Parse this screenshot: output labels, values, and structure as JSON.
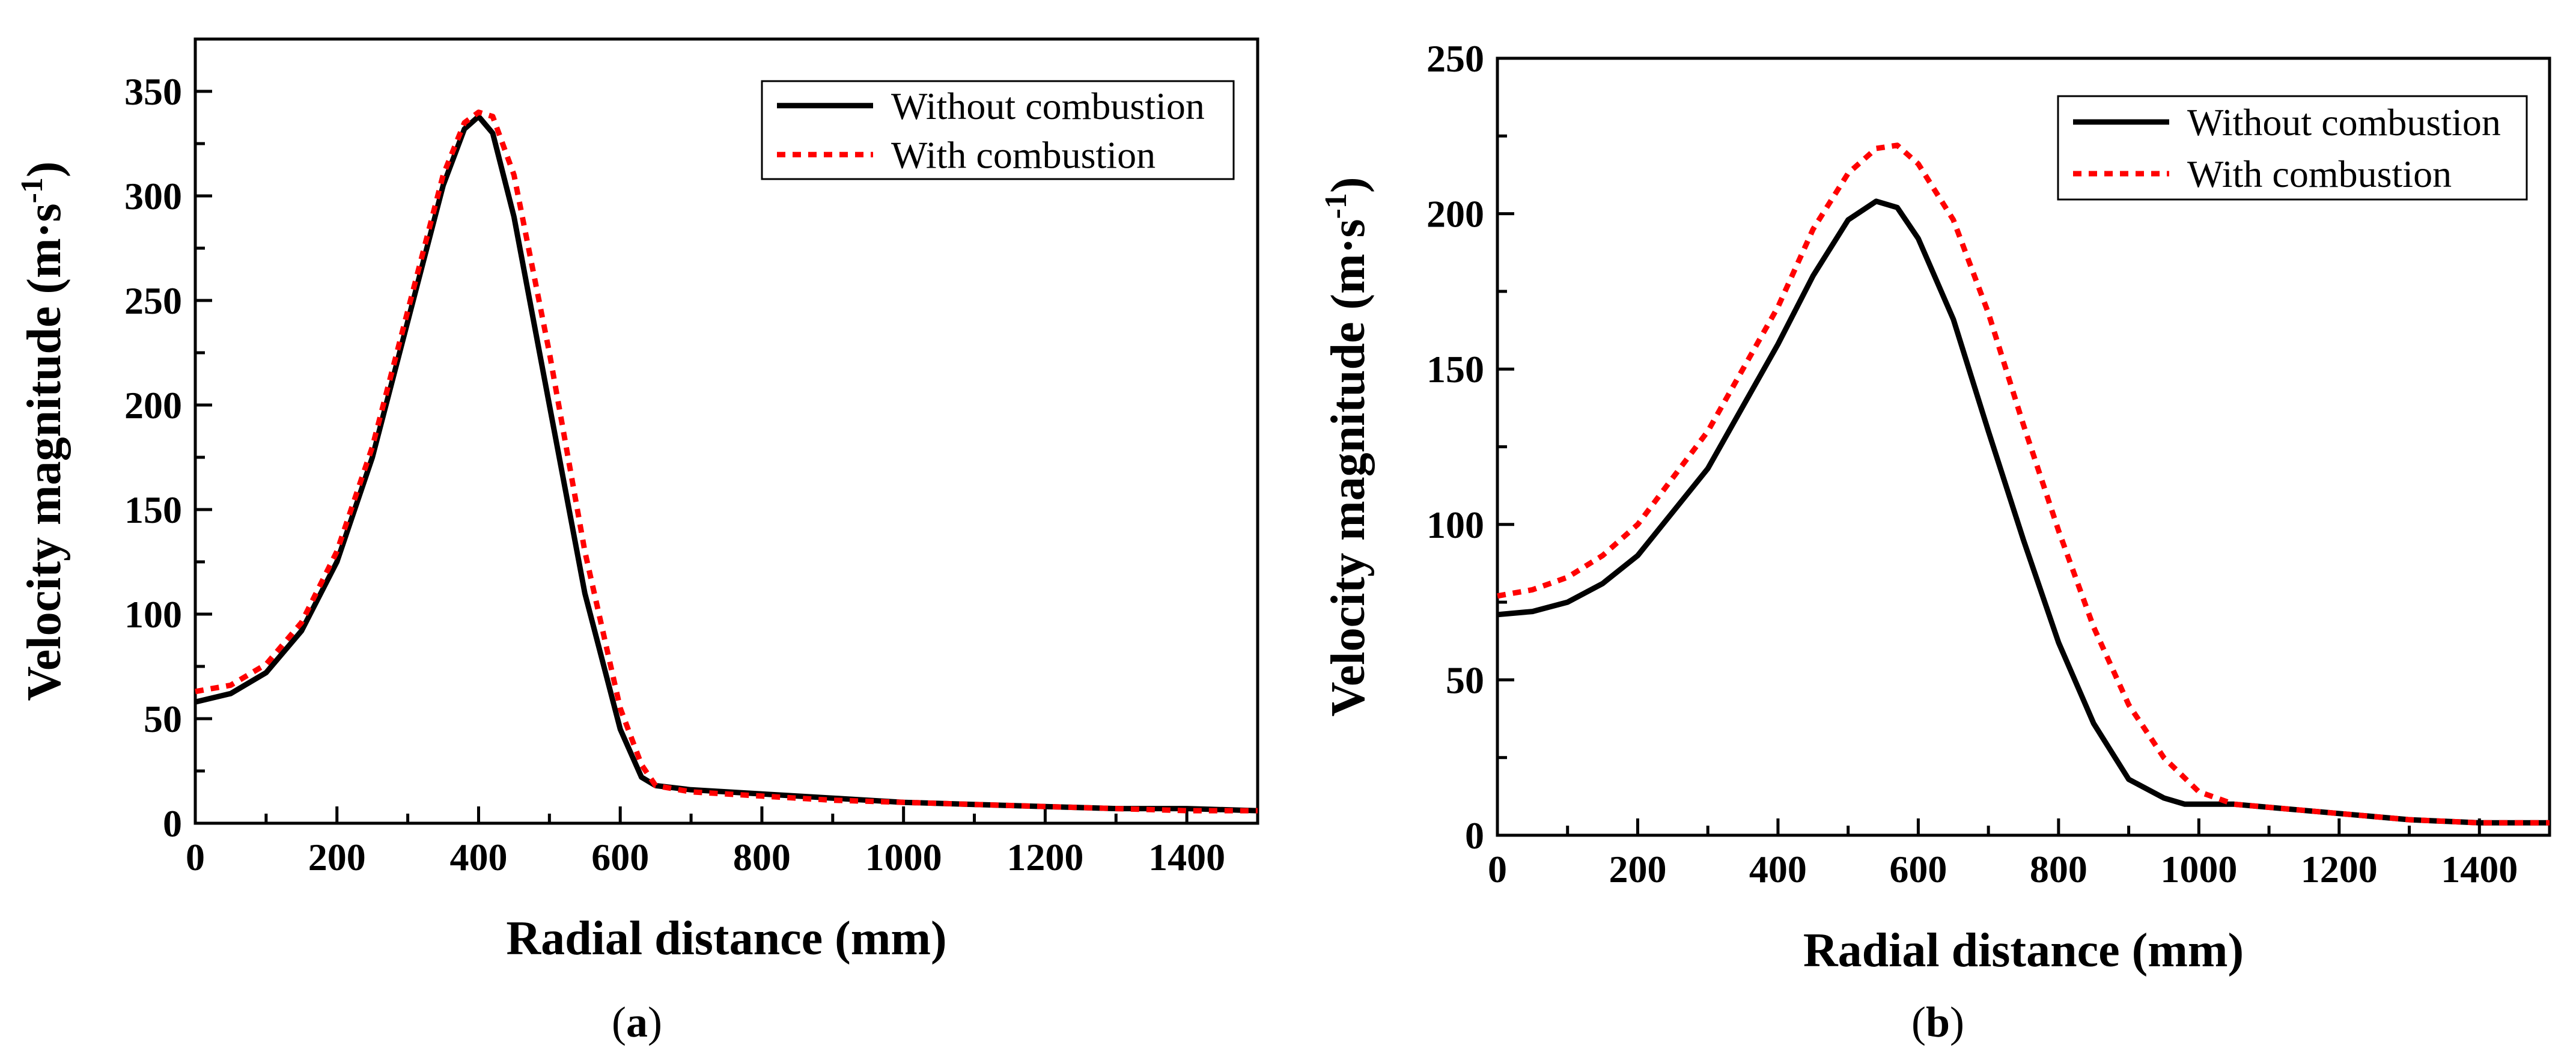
{
  "chart_data": [
    {
      "type": "line",
      "panel_label": "a",
      "xlabel": "Radial distance (mm)",
      "ylabel": "Velocity magnitude (m·s",
      "ylabel_sup": "-1",
      "ylabel_close": ")",
      "xlim": [
        0,
        1500
      ],
      "ylim": [
        0,
        375
      ],
      "xticks": [
        "0",
        "200",
        "400",
        "600",
        "800",
        "1000",
        "1200",
        "1400"
      ],
      "yticks": [
        "0",
        "50",
        "100",
        "150",
        "200",
        "250",
        "300",
        "350"
      ],
      "legend_position": "top-right",
      "series": [
        {
          "name": "Without combustion",
          "color": "#000000",
          "style": "solid",
          "x": [
            0,
            50,
            100,
            150,
            200,
            250,
            300,
            350,
            380,
            400,
            420,
            450,
            500,
            550,
            600,
            630,
            650,
            700,
            800,
            900,
            1000,
            1100,
            1200,
            1300,
            1400,
            1500
          ],
          "y": [
            58,
            62,
            72,
            92,
            125,
            175,
            240,
            305,
            332,
            338,
            330,
            290,
            200,
            110,
            45,
            22,
            18,
            16,
            14,
            12,
            10,
            9,
            8,
            7,
            7,
            6
          ]
        },
        {
          "name": "With combustion",
          "color": "#ff0000",
          "style": "dotted",
          "x": [
            0,
            50,
            100,
            150,
            200,
            250,
            300,
            350,
            380,
            400,
            420,
            450,
            500,
            550,
            600,
            630,
            650,
            700,
            800,
            900,
            1000,
            1100,
            1200,
            1300,
            1400,
            1500
          ],
          "y": [
            63,
            66,
            76,
            96,
            130,
            180,
            245,
            310,
            335,
            340,
            338,
            310,
            225,
            130,
            55,
            28,
            18,
            15,
            13,
            11,
            10,
            9,
            8,
            7,
            6,
            6
          ]
        }
      ]
    },
    {
      "type": "line",
      "panel_label": "b",
      "xlabel": "Radial distance (mm)",
      "ylabel": "Velocity magnitude (m·s",
      "ylabel_sup": "-1",
      "ylabel_close": ")",
      "xlim": [
        0,
        1500
      ],
      "ylim": [
        0,
        250
      ],
      "xticks": [
        "0",
        "200",
        "400",
        "600",
        "800",
        "1000",
        "1200",
        "1400"
      ],
      "yticks": [
        "0",
        "50",
        "100",
        "150",
        "200",
        "250"
      ],
      "legend_position": "top-right",
      "series": [
        {
          "name": "Without combustion",
          "color": "#000000",
          "style": "solid",
          "x": [
            0,
            50,
            100,
            150,
            200,
            300,
            400,
            450,
            500,
            540,
            570,
            600,
            650,
            700,
            750,
            800,
            850,
            900,
            950,
            980,
            1000,
            1050,
            1100,
            1200,
            1300,
            1400,
            1500
          ],
          "y": [
            71,
            72,
            75,
            81,
            90,
            118,
            158,
            180,
            198,
            204,
            202,
            192,
            166,
            130,
            95,
            62,
            36,
            18,
            12,
            10,
            10,
            10,
            9,
            7,
            5,
            4,
            4
          ]
        },
        {
          "name": "With combustion",
          "color": "#ff0000",
          "style": "dotted",
          "x": [
            0,
            50,
            100,
            150,
            200,
            300,
            400,
            450,
            500,
            540,
            570,
            600,
            650,
            700,
            750,
            800,
            850,
            900,
            950,
            1000,
            1050,
            1100,
            1200,
            1300,
            1400,
            1500
          ],
          "y": [
            77,
            79,
            83,
            90,
            100,
            130,
            170,
            195,
            213,
            221,
            222,
            216,
            198,
            168,
            132,
            98,
            67,
            42,
            25,
            14,
            10,
            9,
            7,
            5,
            4,
            4
          ]
        }
      ]
    }
  ]
}
